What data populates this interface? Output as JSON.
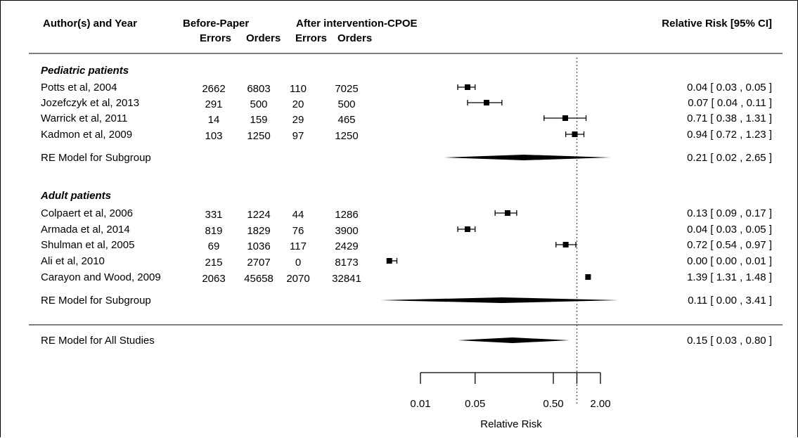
{
  "header": {
    "author_year": "Author(s) and Year",
    "before_group": "Before-Paper",
    "after_group": "After intervention-CPOE",
    "sub_errors": "Errors",
    "sub_orders": "Orders",
    "sub_errors2": "Errors",
    "sub_orders2": "Orders",
    "rr_col": "Relative Risk [95% CI]"
  },
  "chart_data": {
    "type": "forest",
    "xlabel": "Relative Risk",
    "x_scale": "log",
    "x_range": [
      0.004,
      2.5
    ],
    "xticks": [
      0.01,
      0.05,
      0.5,
      2.0
    ],
    "xtick_labels": [
      "0.01",
      "0.05",
      "0.50",
      "2.00"
    ],
    "reference_line": 1.0,
    "groups": [
      {
        "title": "Pediatric patients",
        "studies": [
          {
            "study": "Potts et al, 2004",
            "before_errors": "2662",
            "before_orders": "6803",
            "after_errors": "110",
            "after_orders": "7025",
            "rr": 0.04,
            "lo": 0.03,
            "hi": 0.05,
            "label": "0.04 [ 0.03 , 0.05 ]"
          },
          {
            "study": "Jozefczyk et al, 2013",
            "before_errors": "291",
            "before_orders": "500",
            "after_errors": "20",
            "after_orders": "500",
            "rr": 0.07,
            "lo": 0.04,
            "hi": 0.11,
            "label": "0.07 [ 0.04 , 0.11 ]"
          },
          {
            "study": "Warrick et al, 2011",
            "before_errors": "14",
            "before_orders": "159",
            "after_errors": "29",
            "after_orders": "465",
            "rr": 0.71,
            "lo": 0.38,
            "hi": 1.31,
            "label": "0.71 [ 0.38 , 1.31 ]"
          },
          {
            "study": "Kadmon et al, 2009",
            "before_errors": "103",
            "before_orders": "1250",
            "after_errors": "97",
            "after_orders": "1250",
            "rr": 0.94,
            "lo": 0.72,
            "hi": 1.23,
            "label": "0.94 [ 0.72 , 1.23 ]"
          }
        ],
        "summary": {
          "label": "RE Model for Subgroup",
          "rr": 0.21,
          "lo": 0.02,
          "hi": 2.65,
          "text": "0.21 [ 0.02 , 2.65 ]"
        }
      },
      {
        "title": "Adult patients",
        "studies": [
          {
            "study": "Colpaert et al, 2006",
            "before_errors": "331",
            "before_orders": "1224",
            "after_errors": "44",
            "after_orders": "1286",
            "rr": 0.13,
            "lo": 0.09,
            "hi": 0.17,
            "label": "0.13 [ 0.09 , 0.17 ]"
          },
          {
            "study": "Armada et al, 2014",
            "before_errors": "819",
            "before_orders": "1829",
            "after_errors": "76",
            "after_orders": "3900",
            "rr": 0.04,
            "lo": 0.03,
            "hi": 0.05,
            "label": "0.04 [ 0.03 , 0.05 ]"
          },
          {
            "study": "Shulman et al, 2005",
            "before_errors": "69",
            "before_orders": "1036",
            "after_errors": "117",
            "after_orders": "2429",
            "rr": 0.72,
            "lo": 0.54,
            "hi": 0.97,
            "label": "0.72 [ 0.54 , 0.97 ]"
          },
          {
            "study": "Ali et al, 2010",
            "before_errors": "215",
            "before_orders": "2707",
            "after_errors": "0",
            "after_orders": "8173",
            "rr": 0.004,
            "lo": 0.004,
            "hi": 0.005,
            "label": "0.00 [ 0.00 , 0.01 ]"
          },
          {
            "study": "Carayon and Wood, 2009",
            "before_errors": "2063",
            "before_orders": "45658",
            "after_errors": "2070",
            "after_orders": "32841",
            "rr": 1.39,
            "lo": 1.31,
            "hi": 1.48,
            "label": "1.39 [ 1.31 , 1.48 ]"
          }
        ],
        "summary": {
          "label": "RE Model for Subgroup",
          "rr": 0.11,
          "lo": 0.0,
          "hi": 3.41,
          "text": "0.11 [ 0.00 , 3.41 ]"
        }
      }
    ],
    "overall": {
      "label": "RE Model for All Studies",
      "rr": 0.15,
      "lo": 0.03,
      "hi": 0.8,
      "text": "0.15 [ 0.03 , 0.80 ]"
    }
  }
}
